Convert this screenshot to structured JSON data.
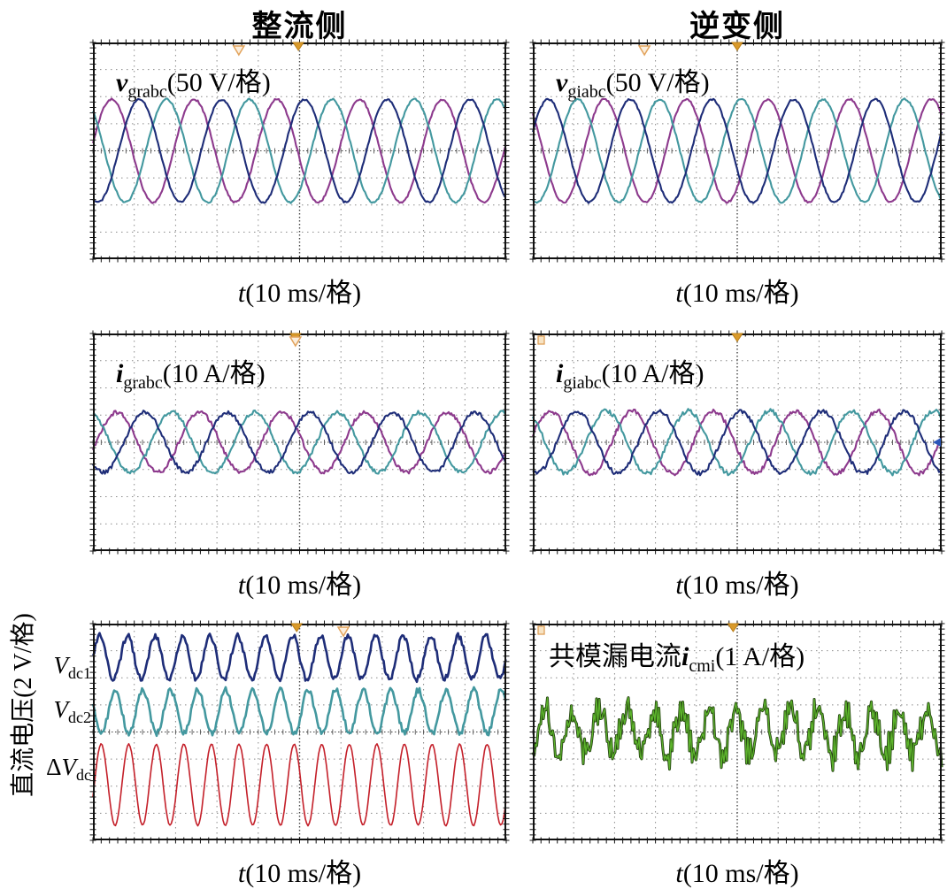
{
  "figure": {
    "column_titles": [
      "整流侧",
      "逆变侧"
    ],
    "xlabel": {
      "var": "t",
      "rest": "(10 ms/格)"
    }
  },
  "chart_data": {
    "type": "line",
    "subtype": "oscilloscope-waveforms",
    "grid": {
      "x_divisions": 10,
      "y_divisions": 8,
      "time_per_div": "10 ms"
    },
    "colors": {
      "phase_a_navy": "#1e2d78",
      "phase_b_teal": "#43989f",
      "phase_c_purple": "#8d3a8d",
      "delta_red": "#c4202a",
      "leakage_green": "#5cb32c",
      "marker_orange": "#dfa05a"
    },
    "panels": [
      {
        "id": "rectifier-grid-voltage",
        "side": "整流侧",
        "label": {
          "prefix": "",
          "var": "v",
          "sub": "grabc",
          "scale": "(50 V/格)"
        },
        "scale_per_div": "50 V",
        "series": [
          {
            "name": "v_gra_purple",
            "color": "#8d3a8d",
            "width": 2.1,
            "amp_div": 1.9,
            "period_div": 2.0,
            "peak_div": 0.45,
            "offset_div": 0,
            "noise_div": 0.035,
            "seed": 11
          },
          {
            "name": "v_grb_teal",
            "color": "#43989f",
            "width": 2.1,
            "amp_div": 1.9,
            "period_div": 2.0,
            "peak_div": 1.78,
            "offset_div": 0,
            "noise_div": 0.035,
            "seed": 12
          },
          {
            "name": "v_grc_navy",
            "color": "#1e2d78",
            "width": 2.1,
            "amp_div": 1.9,
            "period_div": 2.0,
            "peak_div": 1.12,
            "offset_div": 0,
            "noise_div": 0.035,
            "seed": 13
          }
        ],
        "markers": [
          {
            "type": "triangle-hollow",
            "x_frac": 0.353
          },
          {
            "type": "triangle-filled",
            "x_frac": 0.497
          }
        ]
      },
      {
        "id": "inverter-grid-voltage",
        "side": "逆变侧",
        "label": {
          "prefix": "",
          "var": "v",
          "sub": "giabc",
          "scale": "(50 V/格)"
        },
        "scale_per_div": "50 V",
        "series": [
          {
            "name": "v_gia_purple",
            "color": "#8d3a8d",
            "width": 2.1,
            "amp_div": 1.9,
            "period_div": 2.0,
            "peak_div": 1.75,
            "offset_div": 0,
            "noise_div": 0.035,
            "seed": 21
          },
          {
            "name": "v_gib_teal",
            "color": "#43989f",
            "width": 2.1,
            "amp_div": 1.9,
            "period_div": 2.0,
            "peak_div": 1.1,
            "offset_div": 0,
            "noise_div": 0.035,
            "seed": 22
          },
          {
            "name": "v_gic_navy",
            "color": "#1e2d78",
            "width": 2.1,
            "amp_div": 1.9,
            "period_div": 2.0,
            "peak_div": 0.38,
            "offset_div": 0,
            "noise_div": 0.035,
            "seed": 23
          }
        ],
        "markers": [
          {
            "type": "triangle-hollow",
            "x_frac": 0.273
          },
          {
            "type": "triangle-filled",
            "x_frac": 0.5
          }
        ]
      },
      {
        "id": "rectifier-grid-current",
        "side": "整流侧",
        "label": {
          "prefix": "",
          "var": "i",
          "sub": "grabc",
          "scale": "(10 A/格)"
        },
        "scale_per_div": "10 A",
        "series": [
          {
            "name": "i_gra_purple",
            "color": "#8d3a8d",
            "width": 2.1,
            "amp_div": 1.1,
            "period_div": 2.0,
            "peak_div": 0.58,
            "offset_div": 0,
            "noise_div": 0.07,
            "seed": 31
          },
          {
            "name": "i_grb_teal",
            "color": "#43989f",
            "width": 2.1,
            "amp_div": 1.1,
            "period_div": 2.0,
            "peak_div": 1.91,
            "offset_div": 0,
            "noise_div": 0.07,
            "seed": 32
          },
          {
            "name": "i_grc_navy",
            "color": "#1e2d78",
            "width": 2.1,
            "amp_div": 1.1,
            "period_div": 2.0,
            "peak_div": 1.25,
            "offset_div": 0,
            "noise_div": 0.07,
            "seed": 33
          }
        ],
        "markers": [
          {
            "type": "triangle-filled",
            "x_frac": 0.49
          },
          {
            "type": "triangle-hollow",
            "x_frac": 0.49
          }
        ]
      },
      {
        "id": "inverter-grid-current",
        "side": "逆变侧",
        "label": {
          "prefix": "",
          "var": "i",
          "sub": "giabc",
          "scale": "(10 A/格)"
        },
        "scale_per_div": "10 A",
        "series": [
          {
            "name": "i_gia_purple",
            "color": "#8d3a8d",
            "width": 2.1,
            "amp_div": 1.15,
            "period_div": 2.0,
            "peak_div": 0.43,
            "offset_div": 0,
            "noise_div": 0.08,
            "seed": 41
          },
          {
            "name": "i_gib_teal",
            "color": "#43989f",
            "width": 2.1,
            "amp_div": 1.15,
            "period_div": 2.0,
            "peak_div": 1.8,
            "offset_div": 0,
            "noise_div": 0.08,
            "seed": 42
          },
          {
            "name": "i_gic_navy",
            "color": "#1e2d78",
            "width": 2.1,
            "amp_div": 1.15,
            "period_div": 2.0,
            "peak_div": 1.08,
            "offset_div": 0,
            "noise_div": 0.08,
            "seed": 43
          }
        ],
        "markers": [
          {
            "type": "triangle-filled",
            "x_frac": 0.5
          },
          {
            "type": "square",
            "x_frac": 0.013
          },
          {
            "type": "arrow-left",
            "x_frac": 1.0
          }
        ]
      },
      {
        "id": "dc-voltages",
        "side": "整流侧",
        "ylabel": "直流电压(2 V/格)",
        "scale_per_div": "2 V",
        "side_labels": [
          {
            "pre": "",
            "var": "V",
            "sub": "dc1"
          },
          {
            "pre": "",
            "var": "V",
            "sub": "dc2"
          },
          {
            "pre": "Δ",
            "var": "V",
            "sub": "dc"
          }
        ],
        "series": [
          {
            "name": "delta_Vdc_red",
            "color": "#c4202a",
            "width": 1.6,
            "amp_div": 1.5,
            "period_div": 0.667,
            "peak_div": 0.2,
            "offset_div": -1.95,
            "noise_div": 0.02,
            "seed": 51
          },
          {
            "name": "Vdc2_teal",
            "color": "#43989f",
            "width": 2.6,
            "amp_div": 0.8,
            "period_div": 0.667,
            "peak_div": 0.54,
            "offset_div": 0.75,
            "noise_div": 0.11,
            "seed": 52
          },
          {
            "name": "Vdc1_navy",
            "color": "#1e2d78",
            "width": 2.6,
            "amp_div": 0.8,
            "period_div": 0.667,
            "peak_div": 0.17,
            "offset_div": 2.75,
            "noise_div": 0.11,
            "seed": 53
          }
        ],
        "markers": [
          {
            "type": "triangle-filled",
            "x_frac": 0.493
          },
          {
            "type": "triangle-hollow",
            "x_frac": 0.606
          }
        ]
      },
      {
        "id": "common-mode-leakage-current",
        "side": "逆变侧",
        "label": {
          "prefix": "共模漏电流",
          "var": "i",
          "sub": "cmi",
          "scale": "(1 A/格)"
        },
        "scale_per_div": "1 A",
        "series": [
          {
            "name": "i_cmi_green",
            "color": "#5cb32c",
            "outline_color": "#23420f",
            "outline_width": 3.0,
            "width": 1.3,
            "amp_div": 0.8,
            "period_div": 0.667,
            "peak_div": 0.3,
            "offset_div": 0,
            "noise_div": 0.42,
            "hf_amp_div": 0.28,
            "hf_period_div": 0.07,
            "seed": 61
          }
        ],
        "markers": [
          {
            "type": "triangle-filled",
            "x_frac": 0.49
          },
          {
            "type": "square",
            "x_frac": 0.013
          }
        ]
      }
    ]
  }
}
